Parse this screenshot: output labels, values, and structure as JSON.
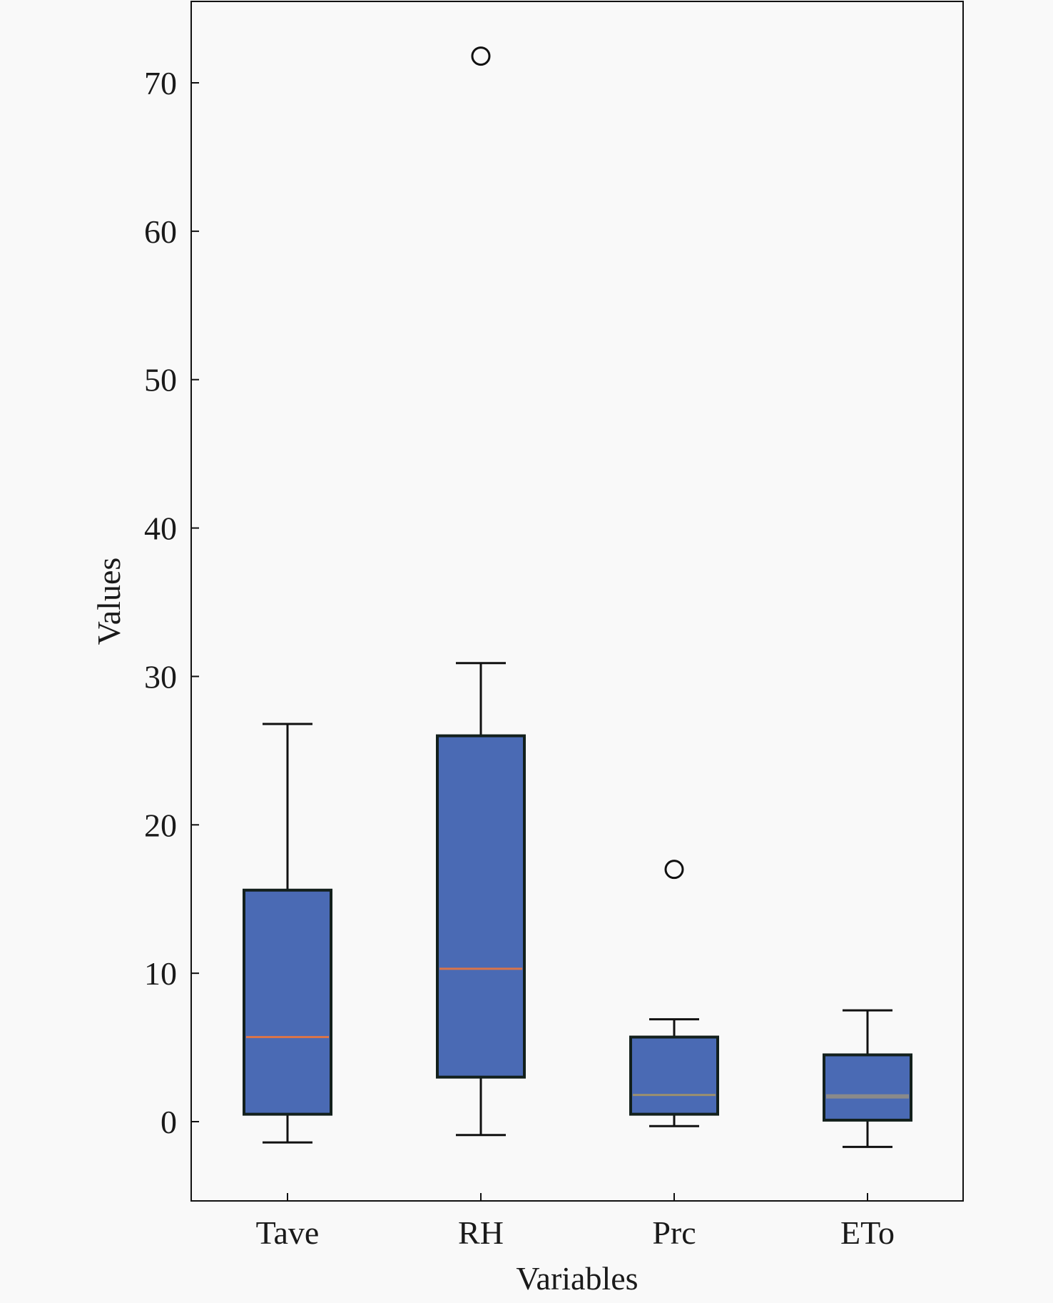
{
  "chart_data": {
    "type": "box",
    "xlabel": "Variables",
    "ylabel": "Values",
    "ylim": [
      -5.5,
      76
    ],
    "yticks": [
      0,
      10,
      20,
      30,
      40,
      50,
      60,
      70
    ],
    "grid": false,
    "categories": [
      "Tave",
      "RH",
      "Prc",
      "ETo"
    ],
    "boxes": [
      {
        "category": "Tave",
        "whisker_low": -1.4,
        "q1": 0.5,
        "median": 5.7,
        "q3": 15.6,
        "whisker_high": 26.8,
        "outliers": []
      },
      {
        "category": "RH",
        "whisker_low": -0.9,
        "q1": 3.0,
        "median": 10.3,
        "q3": 26.0,
        "whisker_high": 30.9,
        "outliers": [
          71.8
        ]
      },
      {
        "category": "Prc",
        "whisker_low": -0.3,
        "q1": 0.5,
        "median": 1.8,
        "q3": 5.7,
        "whisker_high": 6.9,
        "outliers": [
          17.0
        ]
      },
      {
        "category": "ETo",
        "whisker_low": -1.7,
        "q1": 0.1,
        "median": 1.7,
        "q3": 4.5,
        "whisker_high": 7.5,
        "outliers": []
      }
    ],
    "colors": {
      "box_fill": "#4a6ab4",
      "box_edge": "#13201c",
      "median_line": [
        "#d9744a",
        "#d9744a",
        "#9a8f6e",
        "#8a8a8a"
      ],
      "whisker": "#111111",
      "outlier_edge": "#111111"
    }
  }
}
